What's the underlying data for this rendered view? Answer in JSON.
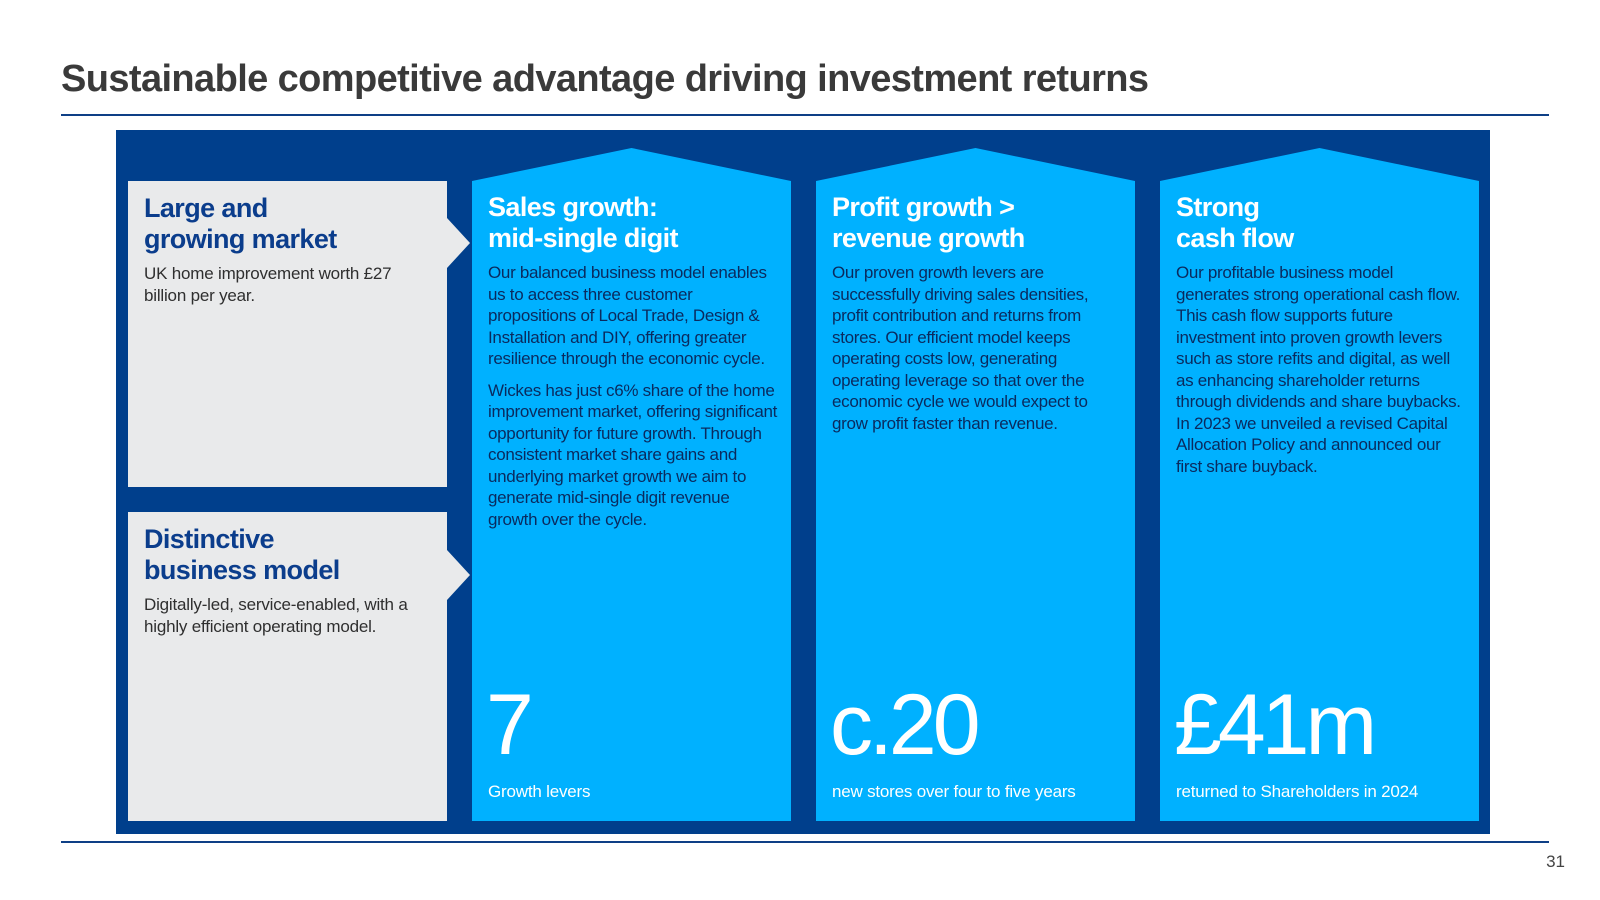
{
  "title": "Sustainable competitive advantage driving investment returns",
  "page_number": "31",
  "colors": {
    "dark_blue": "#003f8c",
    "light_blue": "#00b1ff",
    "grey": "#e9eaeb"
  },
  "left_boxes": [
    {
      "heading_line1": "Large and",
      "heading_line2": "growing market",
      "text": "UK home improvement worth £27 billion per year."
    },
    {
      "heading_line1": "Distinctive",
      "heading_line2": "business model",
      "text": "Digitally-led, service-enabled, with a highly efficient operating model."
    }
  ],
  "columns": [
    {
      "heading_line1": "Sales growth:",
      "heading_line2": "mid-single digit",
      "para1": "Our balanced business model enables us to access three customer propositions of Local Trade, Design & Installation and DIY, offering greater resilience through the economic cycle.",
      "para2": "Wickes has just c6% share of the home improvement market, offering significant opportunity for future growth. Through consistent market share gains and underlying market growth we aim to generate mid-single digit revenue growth over the cycle.",
      "metric": "7",
      "metric_label": "Growth levers"
    },
    {
      "heading_line1": "Profit growth >",
      "heading_line2": "revenue growth",
      "para1": "Our proven growth levers are successfully driving sales densities, profit contribution and returns from stores. Our efficient model keeps operating costs low, generating operating leverage so that over the economic cycle we would expect to grow profit faster than revenue.",
      "metric": "c.20",
      "metric_label": "new stores over four to five years"
    },
    {
      "heading_line1": "Strong",
      "heading_line2": "cash flow",
      "para1": "Our profitable business model generates strong operational cash flow. This cash flow supports future investment into proven growth levers such as store refits and digital, as well as enhancing shareholder returns through dividends and share buybacks. In 2023 we unveiled a revised Capital Allocation Policy and announced our first share buyback.",
      "metric": "£41m",
      "metric_label": "returned to Shareholders in 2024"
    }
  ]
}
